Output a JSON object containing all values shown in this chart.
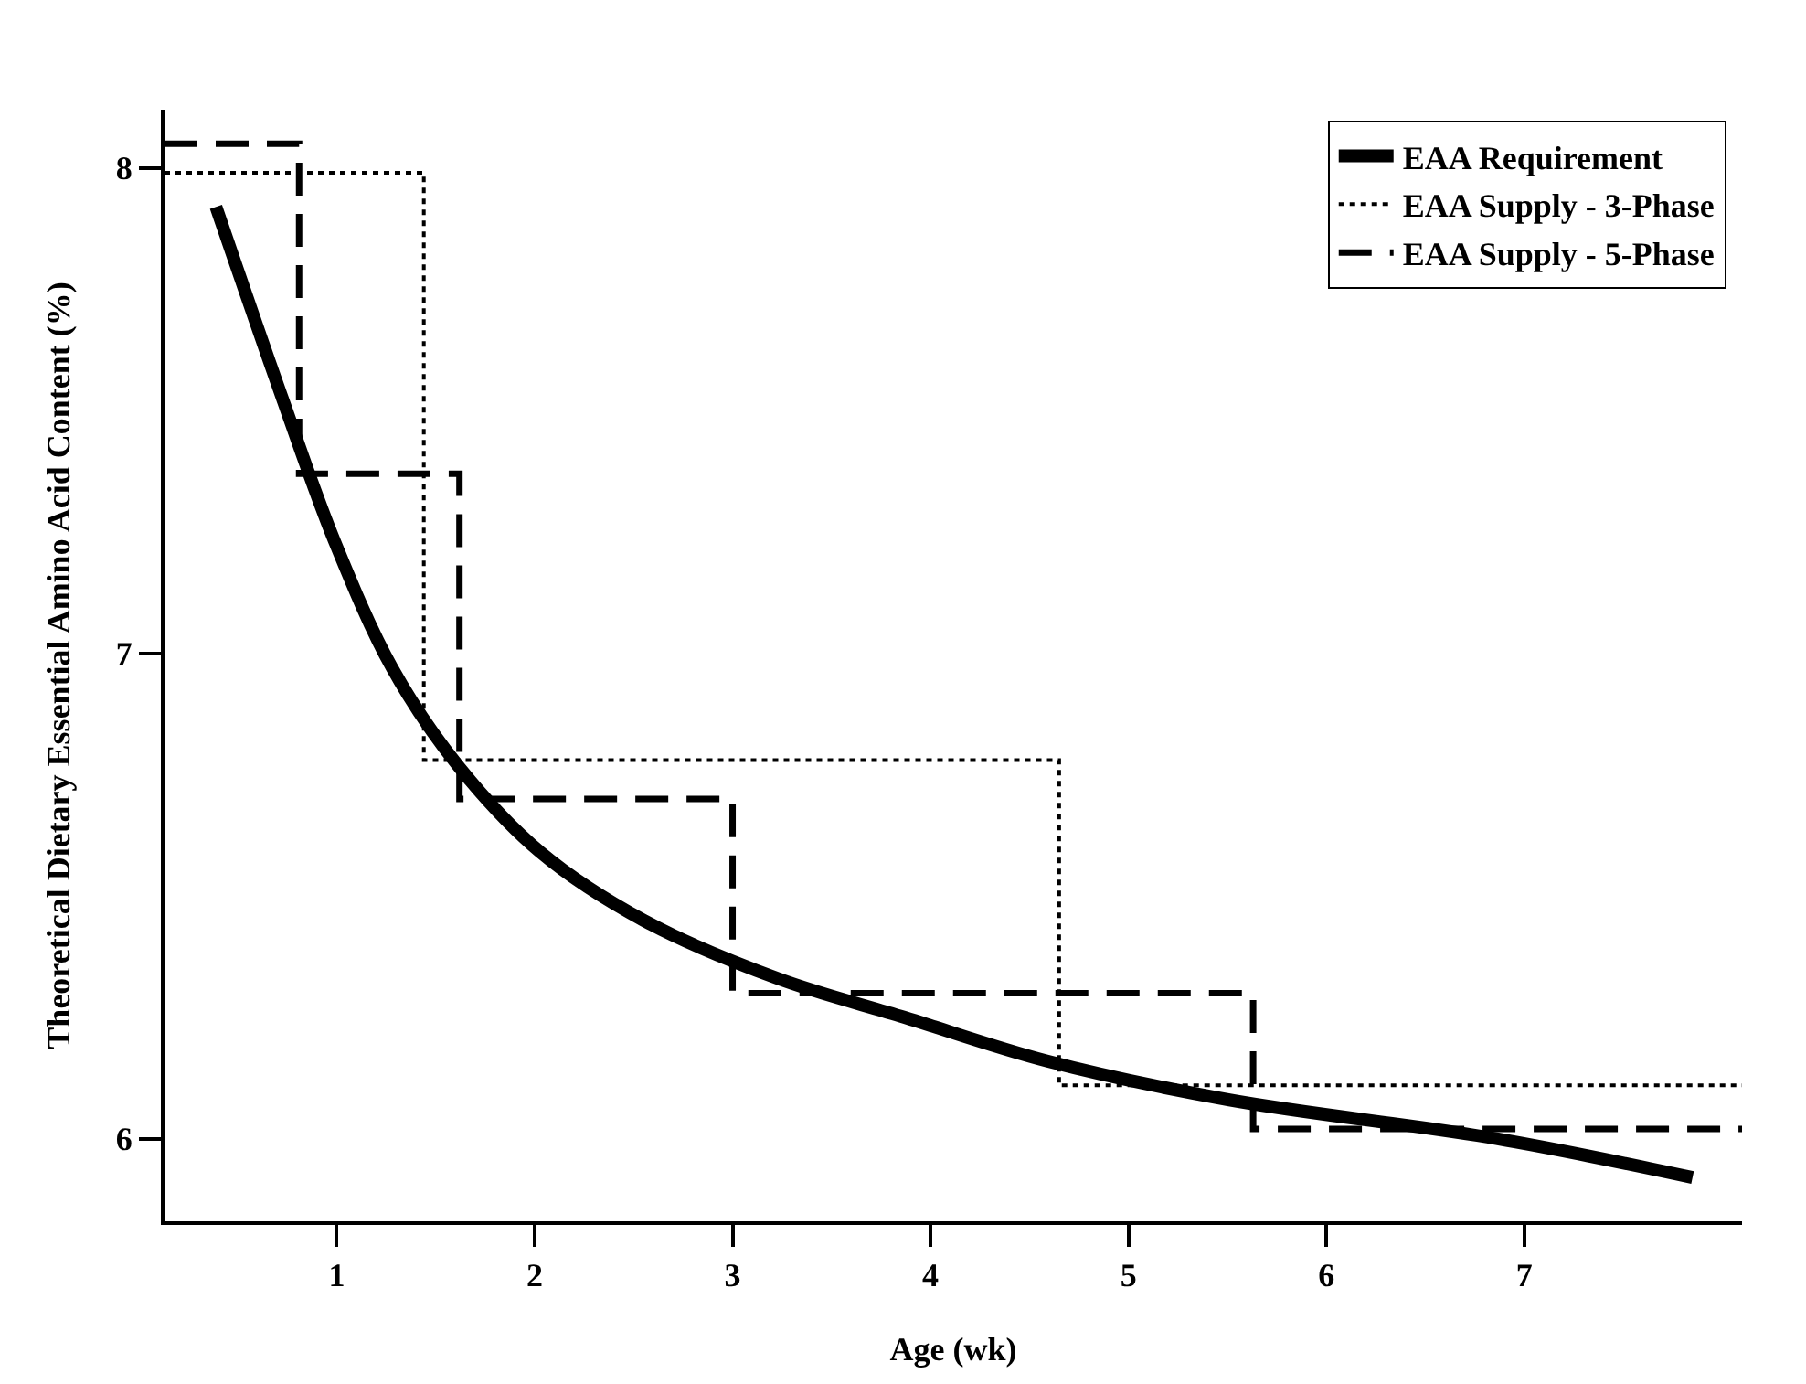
{
  "chart_data": {
    "type": "line",
    "xlabel": "Age (wk)",
    "ylabel": "Theoretical Dietary Essential Amino Acid Content (%)",
    "xlim": [
      0.13,
      8.1
    ],
    "xticks": [
      1,
      2,
      3,
      4,
      5,
      6,
      7
    ],
    "ylim": [
      5.83,
      8.12
    ],
    "yticks": [
      6,
      7,
      8
    ],
    "legend": "top right",
    "marker": "none",
    "series": [
      {
        "name": "EAA Requirement",
        "line_style": "solid",
        "color": "#000000",
        "x": [
          0.39,
          0.73,
          0.99,
          1.28,
          1.61,
          2.03,
          2.55,
          3.23,
          3.87,
          4.59,
          5.51,
          6.86,
          7.85
        ],
        "values": [
          7.92,
          7.52,
          7.23,
          6.97,
          6.77,
          6.59,
          6.45,
          6.33,
          6.25,
          6.16,
          6.08,
          6.0,
          5.92
        ]
      },
      {
        "name": "EAA Supply - 3-Phase",
        "type": "step",
        "line_style": "dotted",
        "color": "#000000",
        "x": [
          0.13,
          1.44,
          4.65,
          8.1
        ],
        "values": [
          7.99,
          6.78,
          6.11,
          6.11
        ]
      },
      {
        "name": "EAA Supply - 5-Phase",
        "type": "step",
        "line_style": "dashed",
        "color": "#000000",
        "x": [
          0.13,
          0.81,
          1.62,
          3.0,
          5.63,
          8.1
        ],
        "values": [
          8.05,
          7.37,
          6.7,
          6.3,
          6.02,
          6.02
        ]
      }
    ]
  }
}
